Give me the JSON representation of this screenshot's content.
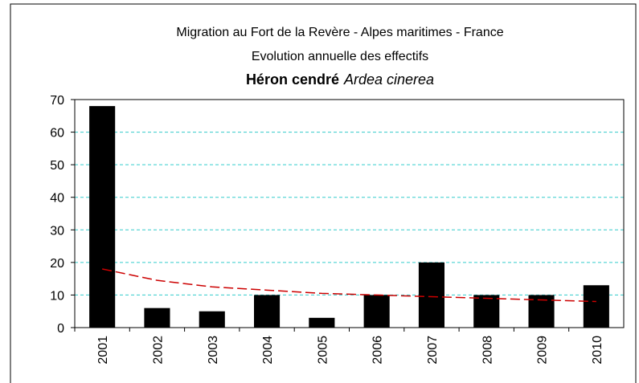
{
  "chart_data": {
    "type": "bar",
    "title": "Migration au Fort de la Revère - Alpes maritimes - France",
    "subtitle": "Evolution annuelle des effectifs",
    "species": "Héron cendré",
    "species_latin": "Ardea cinerea",
    "categories": [
      "2001",
      "2002",
      "2003",
      "2004",
      "2005",
      "2006",
      "2007",
      "2008",
      "2009",
      "2010"
    ],
    "values": [
      68,
      6,
      5,
      10,
      3,
      10,
      20,
      10,
      10,
      13
    ],
    "color": "#000000",
    "trend": {
      "values": [
        18,
        14.5,
        12.5,
        11.5,
        10.5,
        10,
        9.5,
        9,
        8.5,
        8
      ],
      "color": "#cc0000"
    },
    "ylim": [
      0,
      70
    ],
    "yticks": [
      0,
      10,
      20,
      30,
      40,
      50,
      60,
      70
    ],
    "grid": true,
    "grid_color": "#33cccc"
  }
}
